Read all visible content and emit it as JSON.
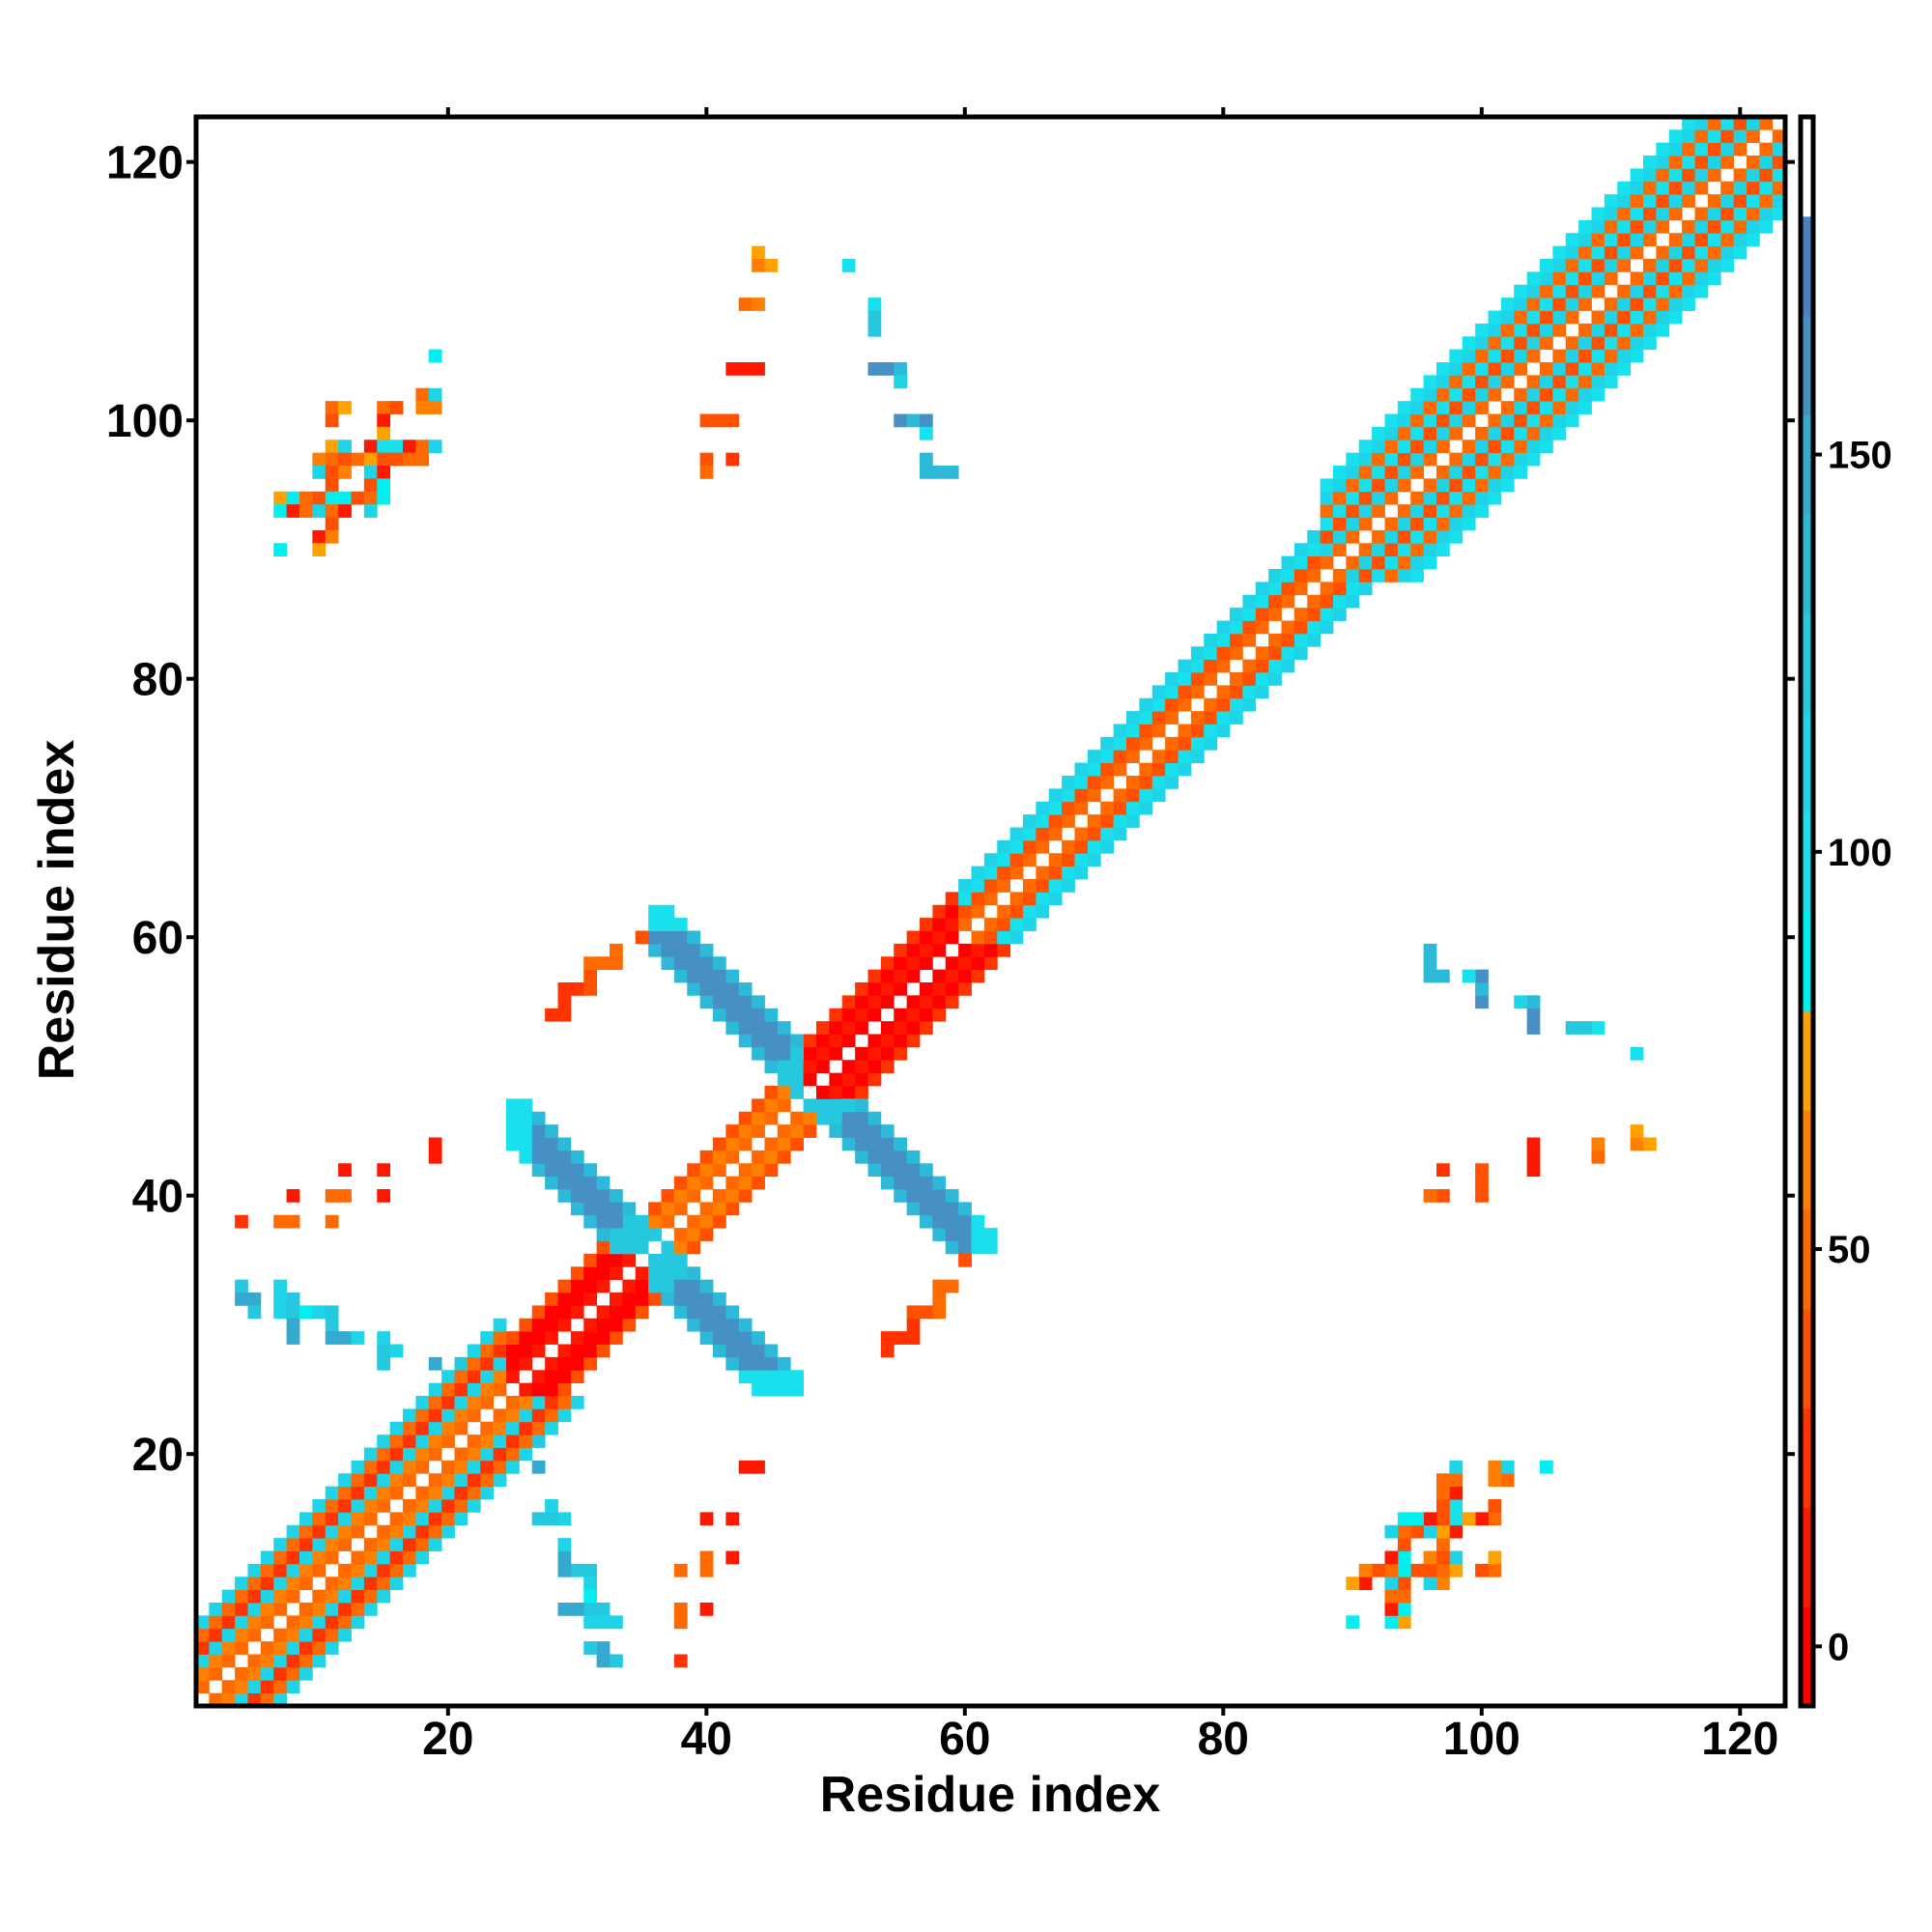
{
  "chart_data": {
    "type": "heatmap",
    "title": "",
    "xlabel": "Residue index",
    "ylabel": "Residue index",
    "xlim": [
      0.5,
      123.5
    ],
    "ylim": [
      0.5,
      123.5
    ],
    "xticks": [
      20,
      40,
      60,
      80,
      100,
      120
    ],
    "yticks": [
      20,
      40,
      60,
      80,
      100,
      120
    ],
    "symmetric": true,
    "colorbar": {
      "range": [
        -7.5,
        192.5
      ],
      "bin_width": 12.5,
      "ticks": [
        0,
        50,
        100,
        150
      ],
      "colors": [
        "#ff0000",
        "#ff1800",
        "#ff3300",
        "#ff5000",
        "#ff6a00",
        "#ff8000",
        "#ffa200",
        "#00f0f0",
        "#18e0ec",
        "#1ed4e6",
        "#26c8e0",
        "#2cbad8",
        "#34aad0",
        "#4690c6",
        "#4a80bf",
        "#ffffff"
      ]
    },
    "diagonal_segments": [
      {
        "from": 1,
        "to": 24,
        "offset_values": [
          50,
          62.5,
          112.5,
          25,
          50,
          112.5
        ]
      },
      {
        "from": 25,
        "to": 34,
        "offset_values": [
          12.5,
          0,
          0,
          37.5
        ]
      },
      {
        "from": 35,
        "to": 47,
        "offset_values": [
          50,
          62.5,
          37.5
        ]
      },
      {
        "from": 48,
        "to": 59,
        "offset_values": [
          0,
          12.5,
          0,
          25
        ]
      },
      {
        "from": 60,
        "to": 87,
        "offset_values": [
          50,
          37.5,
          100,
          112.5
        ]
      },
      {
        "from": 88,
        "to": 122,
        "offset_values": [
          50,
          112.5,
          37.5,
          100,
          50,
          112.5,
          100
        ]
      }
    ],
    "antidiagonal_strips": [
      {
        "sum_range": [
          95,
          99
        ],
        "i_range": [
          36,
          47
        ],
        "j_range": [
          48,
          62
        ],
        "outer_end": "high_j",
        "core_value": 162.5,
        "edge_value": 137.5,
        "end_value": 100,
        "near_diag_value": 125
      },
      {
        "sum_range": [
          69,
          73
        ],
        "i_range": [
          25,
          36
        ],
        "j_range": [
          36,
          47
        ],
        "outer_end": "low_i",
        "core_value": 162.5,
        "edge_value": 137.5,
        "end_value": 100,
        "near_diag_value": 125
      }
    ],
    "cells": [
      [
        19,
        105,
        87.5
      ],
      [
        18,
        102,
        50
      ],
      [
        19,
        102,
        112.5
      ],
      [
        11,
        101,
        50
      ],
      [
        12,
        101,
        75
      ],
      [
        15,
        101,
        50
      ],
      [
        16,
        101,
        37.5
      ],
      [
        18,
        101,
        62.5
      ],
      [
        19,
        101,
        62.5
      ],
      [
        11,
        100,
        37.5
      ],
      [
        15,
        100,
        12.5
      ],
      [
        15,
        99,
        75
      ],
      [
        11,
        98,
        75
      ],
      [
        12,
        98,
        112.5
      ],
      [
        14,
        98,
        12.5
      ],
      [
        15,
        98,
        100
      ],
      [
        16,
        98,
        100
      ],
      [
        17,
        98,
        12.5
      ],
      [
        18,
        98,
        50
      ],
      [
        19,
        98,
        112.5
      ],
      [
        10,
        97,
        62.5
      ],
      [
        11,
        97,
        50
      ],
      [
        12,
        97,
        37.5
      ],
      [
        13,
        97,
        50
      ],
      [
        14,
        97,
        75
      ],
      [
        15,
        97,
        37.5
      ],
      [
        16,
        97,
        37.5
      ],
      [
        17,
        97,
        50
      ],
      [
        18,
        97,
        50
      ],
      [
        10,
        96,
        112.5
      ],
      [
        11,
        96,
        37.5
      ],
      [
        12,
        96,
        62.5
      ],
      [
        14,
        96,
        112.5
      ],
      [
        15,
        96,
        12.5
      ],
      [
        11,
        95,
        37.5
      ],
      [
        14,
        95,
        37.5
      ],
      [
        15,
        95,
        87.5
      ],
      [
        7,
        94,
        75
      ],
      [
        8,
        94,
        87.5
      ],
      [
        9,
        94,
        50
      ],
      [
        10,
        94,
        37.5
      ],
      [
        11,
        94,
        87.5
      ],
      [
        12,
        94,
        87.5
      ],
      [
        13,
        94,
        37.5
      ],
      [
        14,
        94,
        50
      ],
      [
        15,
        94,
        87.5
      ],
      [
        7,
        93,
        87.5
      ],
      [
        8,
        93,
        12.5
      ],
      [
        9,
        93,
        50
      ],
      [
        10,
        93,
        112.5
      ],
      [
        11,
        93,
        50
      ],
      [
        12,
        93,
        12.5
      ],
      [
        14,
        93,
        112.5
      ],
      [
        11,
        92,
        37.5
      ],
      [
        10,
        91,
        12.5
      ],
      [
        11,
        91,
        62.5
      ],
      [
        7,
        90,
        87.5
      ],
      [
        10,
        90,
        75
      ],
      [
        44,
        113,
        75
      ],
      [
        44,
        112,
        62.5
      ],
      [
        45,
        112,
        75
      ],
      [
        51,
        112,
        100
      ],
      [
        43,
        109,
        50
      ],
      [
        44,
        109,
        62.5
      ],
      [
        53,
        109,
        100
      ],
      [
        53,
        108,
        125
      ],
      [
        53,
        107,
        125
      ],
      [
        42,
        104,
        12.5
      ],
      [
        43,
        104,
        12.5
      ],
      [
        44,
        104,
        12.5
      ],
      [
        53,
        104,
        162.5
      ],
      [
        54,
        104,
        162.5
      ],
      [
        55,
        104,
        137.5
      ],
      [
        55,
        103,
        112.5
      ],
      [
        40,
        100,
        37.5
      ],
      [
        41,
        100,
        37.5
      ],
      [
        42,
        100,
        37.5
      ],
      [
        55,
        100,
        162.5
      ],
      [
        56,
        100,
        137.5
      ],
      [
        57,
        100,
        162.5
      ],
      [
        57,
        99,
        100
      ],
      [
        40,
        97,
        37.5
      ],
      [
        42,
        97,
        25
      ],
      [
        40,
        96,
        50
      ],
      [
        57,
        97,
        137.5
      ],
      [
        57,
        96,
        137.5
      ],
      [
        58,
        96,
        137.5
      ],
      [
        59,
        96,
        137.5
      ],
      [
        4,
        38,
        25
      ],
      [
        7,
        38,
        50
      ],
      [
        8,
        38,
        50
      ],
      [
        11,
        38,
        50
      ],
      [
        8,
        40,
        12.5
      ],
      [
        11,
        40,
        50
      ],
      [
        12,
        40,
        50
      ],
      [
        15,
        40,
        12.5
      ],
      [
        12,
        42,
        12.5
      ],
      [
        15,
        42,
        12.5
      ],
      [
        19,
        43,
        12.5
      ],
      [
        19,
        44,
        12.5
      ],
      [
        4,
        33,
        125
      ],
      [
        4,
        32,
        150
      ],
      [
        5,
        32,
        150
      ],
      [
        5,
        31,
        125
      ],
      [
        7,
        33,
        112.5
      ],
      [
        7,
        32,
        112.5
      ],
      [
        7,
        31,
        112.5
      ],
      [
        8,
        32,
        125
      ],
      [
        8,
        31,
        125
      ],
      [
        8,
        30,
        150
      ],
      [
        8,
        29,
        150
      ],
      [
        9,
        31,
        87.5
      ],
      [
        10,
        31,
        112.5
      ],
      [
        11,
        31,
        125
      ],
      [
        11,
        30,
        125
      ],
      [
        11,
        29,
        150
      ],
      [
        12,
        29,
        150
      ],
      [
        13,
        29,
        112.5
      ],
      [
        15,
        29,
        112.5
      ],
      [
        15,
        28,
        125
      ],
      [
        15,
        27,
        125
      ],
      [
        16,
        28,
        112.5
      ],
      [
        19,
        27,
        150
      ],
      [
        21,
        27,
        125
      ],
      [
        28,
        54,
        25
      ],
      [
        29,
        54,
        25
      ],
      [
        29,
        55,
        25
      ],
      [
        29,
        56,
        25
      ],
      [
        30,
        56,
        25
      ],
      [
        31,
        56,
        37.5
      ],
      [
        31,
        57,
        37.5
      ],
      [
        31,
        58,
        50
      ],
      [
        32,
        58,
        50
      ],
      [
        33,
        58,
        50
      ],
      [
        33,
        59,
        50
      ],
      [
        35,
        60,
        37.5
      ]
    ]
  }
}
